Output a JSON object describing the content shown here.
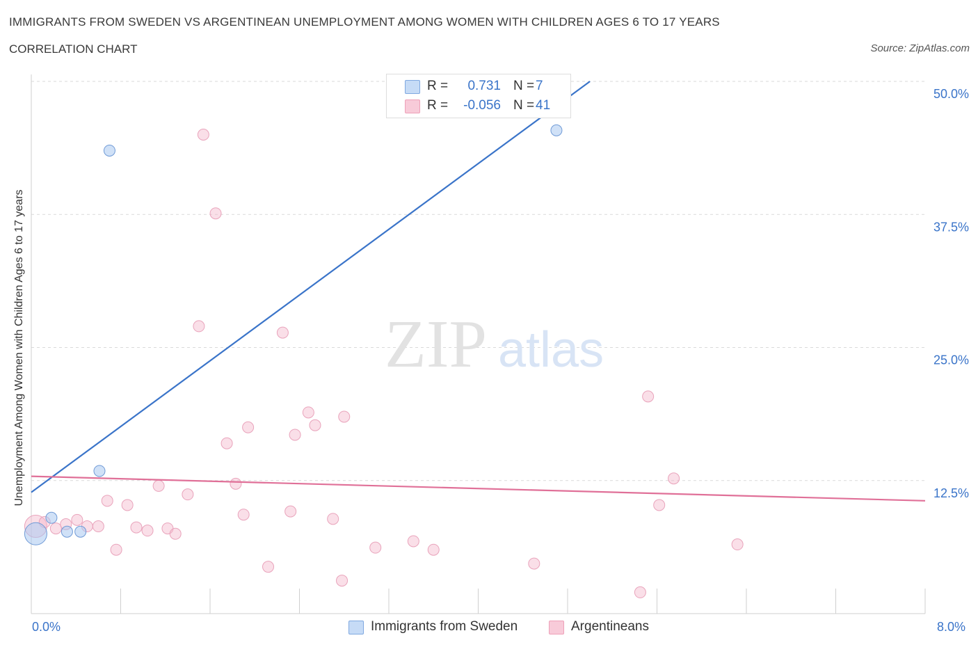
{
  "title": "IMMIGRANTS FROM SWEDEN VS ARGENTINEAN UNEMPLOYMENT AMONG WOMEN WITH CHILDREN AGES 6 TO 17 YEARS",
  "subtitle": "CORRELATION CHART",
  "source": "Source: ZipAtlas.com",
  "watermark": {
    "zip": "ZIP",
    "atlas": "atlas"
  },
  "legend_stats": [
    {
      "r_label": "R =",
      "r_value": "0.731",
      "n_label": "N =",
      "n_value": "7",
      "color": "#a9c8f0"
    },
    {
      "r_label": "R =",
      "r_value": "-0.056",
      "n_label": "N =",
      "n_value": "41",
      "color": "#f5b8cb"
    }
  ],
  "x_tick_labels": {
    "min": "0.0%",
    "max": "8.0%"
  },
  "chart_data": {
    "type": "scatter",
    "title": "IMMIGRANTS FROM SWEDEN VS ARGENTINEAN UNEMPLOYMENT AMONG WOMEN WITH CHILDREN AGES 6 TO 17 YEARS",
    "xlabel": "",
    "ylabel": "Unemployment Among Women with Children Ages 6 to 17 years",
    "xlim": [
      0,
      8
    ],
    "ylim": [
      0,
      50
    ],
    "y_ticks": [
      {
        "value": 12.5,
        "label": "12.5%"
      },
      {
        "value": 25,
        "label": "25.0%"
      },
      {
        "value": 37.5,
        "label": "37.5%"
      },
      {
        "value": 50,
        "label": "50.0%"
      }
    ],
    "grid": true,
    "legend_position": "bottom",
    "series": [
      {
        "name": "Immigrants from Sweden",
        "color": "#a9c8f0",
        "line_color": "#3a74c9",
        "trend": [
          [
            0.0,
            11.4
          ],
          [
            5.0,
            50.0
          ]
        ],
        "points": [
          {
            "x": 0.04,
            "y": 7.5,
            "size": "large"
          },
          {
            "x": 0.18,
            "y": 9.0
          },
          {
            "x": 0.32,
            "y": 7.7
          },
          {
            "x": 0.44,
            "y": 7.7
          },
          {
            "x": 0.61,
            "y": 13.4
          },
          {
            "x": 0.7,
            "y": 43.5
          },
          {
            "x": 4.7,
            "y": 45.4
          }
        ]
      },
      {
        "name": "Argentineans",
        "color": "#f5b8cb",
        "line_color": "#e07098",
        "trend": [
          [
            0.0,
            12.9
          ],
          [
            8.0,
            10.6
          ]
        ],
        "points": [
          {
            "x": 0.04,
            "y": 8.2,
            "size": "large"
          },
          {
            "x": 0.12,
            "y": 8.6
          },
          {
            "x": 0.22,
            "y": 8.0
          },
          {
            "x": 0.31,
            "y": 8.4
          },
          {
            "x": 0.41,
            "y": 8.8
          },
          {
            "x": 0.5,
            "y": 8.2
          },
          {
            "x": 0.6,
            "y": 8.2
          },
          {
            "x": 0.68,
            "y": 10.6
          },
          {
            "x": 0.76,
            "y": 6.0
          },
          {
            "x": 0.86,
            "y": 10.2
          },
          {
            "x": 0.94,
            "y": 8.1
          },
          {
            "x": 1.04,
            "y": 7.8
          },
          {
            "x": 1.14,
            "y": 12.0
          },
          {
            "x": 1.22,
            "y": 8.0
          },
          {
            "x": 1.29,
            "y": 7.5
          },
          {
            "x": 1.4,
            "y": 11.2
          },
          {
            "x": 1.5,
            "y": 27.0
          },
          {
            "x": 1.54,
            "y": 45.0
          },
          {
            "x": 1.65,
            "y": 37.6
          },
          {
            "x": 1.75,
            "y": 16.0
          },
          {
            "x": 1.83,
            "y": 12.2
          },
          {
            "x": 1.9,
            "y": 9.3
          },
          {
            "x": 1.94,
            "y": 17.5
          },
          {
            "x": 2.12,
            "y": 4.4
          },
          {
            "x": 2.25,
            "y": 26.4
          },
          {
            "x": 2.32,
            "y": 9.6
          },
          {
            "x": 2.36,
            "y": 16.8
          },
          {
            "x": 2.48,
            "y": 18.9
          },
          {
            "x": 2.54,
            "y": 17.7
          },
          {
            "x": 2.7,
            "y": 8.9
          },
          {
            "x": 2.78,
            "y": 3.1
          },
          {
            "x": 2.8,
            "y": 18.5
          },
          {
            "x": 3.08,
            "y": 6.2
          },
          {
            "x": 3.42,
            "y": 6.8
          },
          {
            "x": 3.6,
            "y": 6.0
          },
          {
            "x": 4.5,
            "y": 4.7
          },
          {
            "x": 5.45,
            "y": 2.0
          },
          {
            "x": 5.52,
            "y": 20.4
          },
          {
            "x": 5.62,
            "y": 10.2
          },
          {
            "x": 5.75,
            "y": 12.7
          },
          {
            "x": 6.32,
            "y": 6.5
          }
        ]
      }
    ]
  }
}
